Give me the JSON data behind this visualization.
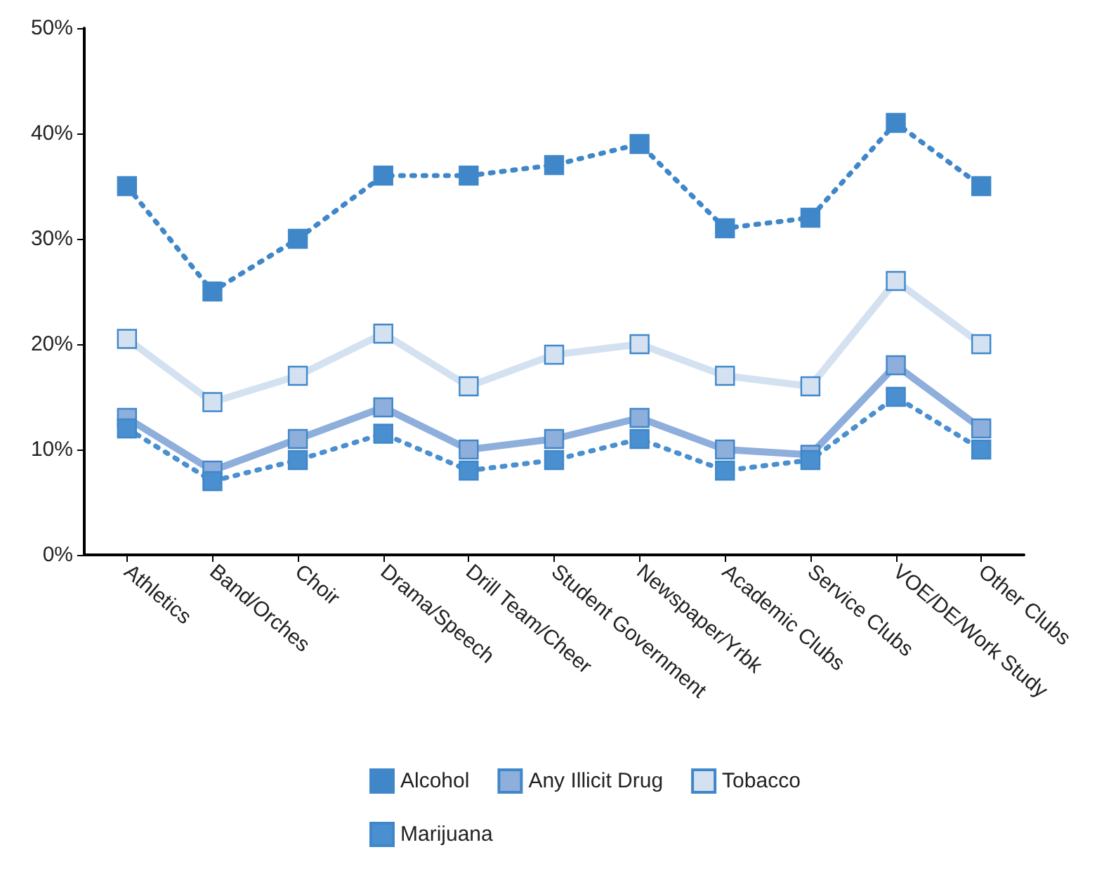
{
  "chart_data": {
    "type": "line",
    "categories": [
      "Athletics",
      "Band/Orches",
      "Choir",
      "Drama/Speech",
      "Drill Team/Cheer",
      "Student Government",
      "Newspaper/Yrbk",
      "Academic Clubs",
      "Service Clubs",
      "VOE/DE/Work Study",
      "Other Clubs"
    ],
    "series": [
      {
        "name": "Alcohol",
        "color": "#3f87c9",
        "line_style": "dotted",
        "values": [
          35,
          25,
          30,
          36,
          36,
          37,
          39,
          31,
          32,
          41,
          35
        ]
      },
      {
        "name": "Any Illicit Drug",
        "color": "#8eaedc",
        "line_style": "solid",
        "values": [
          13,
          8,
          11,
          14,
          10,
          11,
          13,
          10,
          9.5,
          18,
          12
        ]
      },
      {
        "name": "Tobacco",
        "color": "#d3e1f1",
        "line_style": "solid",
        "values": [
          20.5,
          14.5,
          17,
          21,
          16,
          19,
          20,
          17,
          16,
          26,
          20
        ]
      },
      {
        "name": "Marijuana",
        "color": "#4a8fd0",
        "line_style": "dotted",
        "values": [
          12,
          7,
          9,
          11.5,
          8,
          9,
          11,
          8,
          9,
          15,
          10
        ]
      }
    ],
    "ylim": [
      0,
      50
    ],
    "yticks": [
      {
        "value": 0,
        "label": "0%"
      },
      {
        "value": 10,
        "label": "10%"
      },
      {
        "value": 20,
        "label": "20%"
      },
      {
        "value": 30,
        "label": "30%"
      },
      {
        "value": 40,
        "label": "40%"
      },
      {
        "value": 50,
        "label": "50%"
      }
    ],
    "grid": false,
    "legend": "bottom",
    "marker": "square"
  }
}
